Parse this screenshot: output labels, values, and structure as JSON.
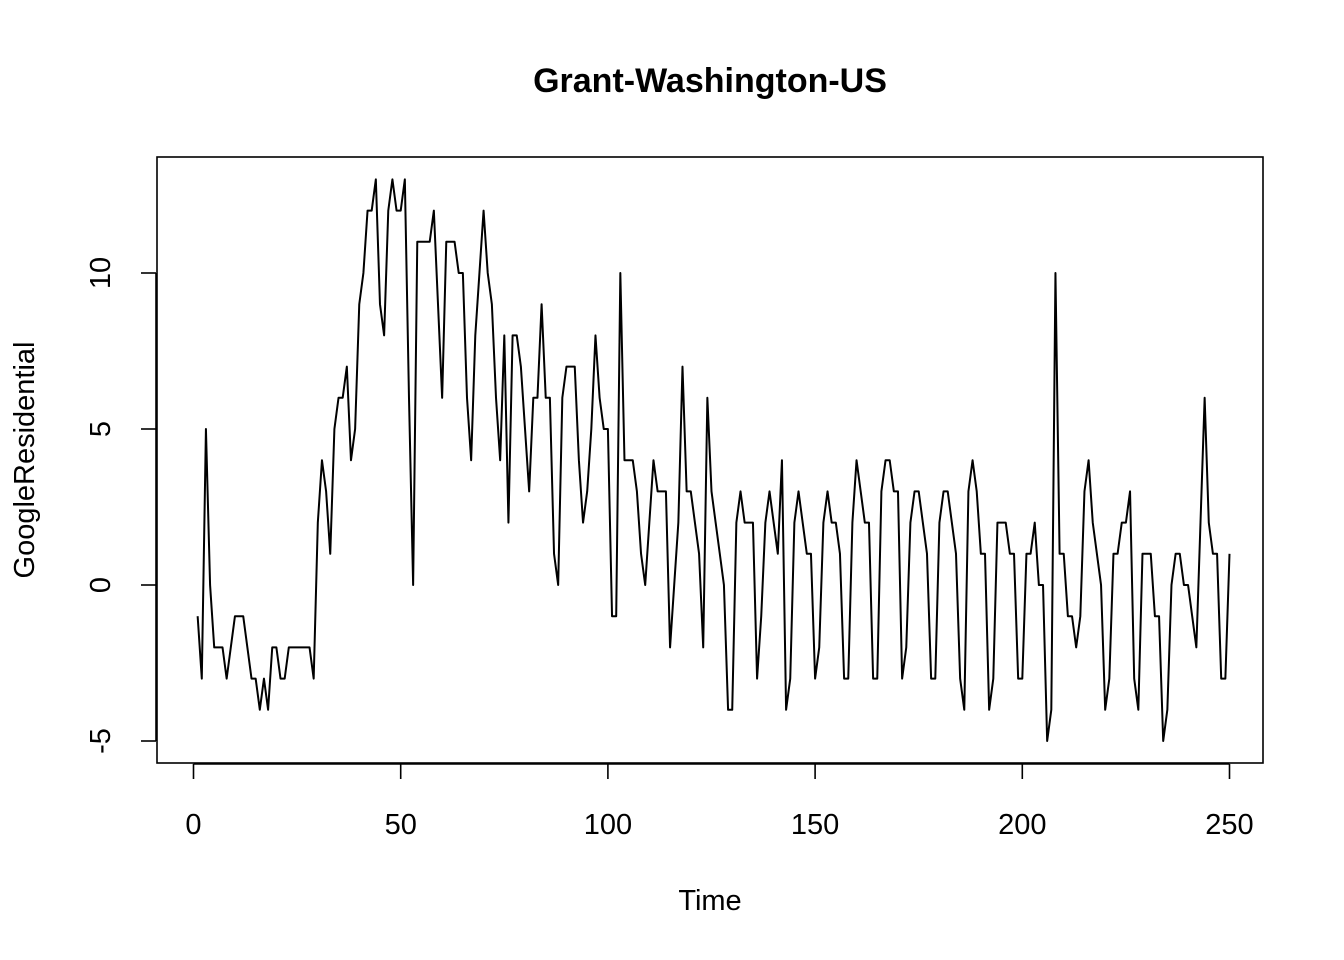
{
  "chart_data": {
    "type": "line",
    "title": "Grant-Washington-US",
    "xlabel": "Time",
    "ylabel": "GoogleResidential",
    "xlim": [
      0,
      250
    ],
    "ylim": [
      -5,
      13
    ],
    "x_ticks": [
      0,
      50,
      100,
      150,
      200,
      250
    ],
    "y_ticks": [
      -5,
      0,
      5,
      10
    ],
    "x_start": 1,
    "grid": false,
    "legend": "none",
    "line_color": "#000000",
    "series": [
      {
        "values": [
          -1,
          -3,
          5,
          0,
          -2,
          -2,
          -2,
          -3,
          -2,
          -1,
          -1,
          -1,
          -2,
          -3,
          -3,
          -4,
          -3,
          -4,
          -2,
          -2,
          -3,
          -3,
          -2,
          -2,
          -2,
          -2,
          -2,
          -2,
          -3,
          2,
          4,
          3,
          1,
          5,
          6,
          6,
          7,
          4,
          5,
          9,
          10,
          12,
          12,
          13,
          9,
          8,
          12,
          13,
          12,
          12,
          13,
          6,
          0,
          11,
          11,
          11,
          11,
          12,
          9,
          6,
          11,
          11,
          11,
          10,
          10,
          6,
          4,
          8,
          10,
          12,
          10,
          9,
          6,
          4,
          8,
          2,
          8,
          8,
          7,
          5,
          3,
          6,
          6,
          9,
          6,
          6,
          1,
          0,
          6,
          7,
          7,
          7,
          4,
          2,
          3,
          5,
          8,
          6,
          5,
          5,
          -1,
          -1,
          10,
          4,
          4,
          4,
          3,
          1,
          0,
          2,
          4,
          3,
          3,
          3,
          -2,
          0,
          2,
          7,
          3,
          3,
          2,
          1,
          -2,
          6,
          3,
          2,
          1,
          0,
          -4,
          -4,
          2,
          3,
          2,
          2,
          2,
          -3,
          -1,
          2,
          3,
          2,
          1,
          4,
          -4,
          -3,
          2,
          3,
          2,
          1,
          1,
          -3,
          -2,
          2,
          3,
          2,
          2,
          1,
          -3,
          -3,
          2,
          4,
          3,
          2,
          2,
          -3,
          -3,
          3,
          4,
          4,
          3,
          3,
          -3,
          -2,
          2,
          3,
          3,
          2,
          1,
          -3,
          -3,
          2,
          3,
          3,
          2,
          1,
          -3,
          -4,
          3,
          4,
          3,
          1,
          1,
          -4,
          -3,
          2,
          2,
          2,
          1,
          1,
          -3,
          -3,
          1,
          1,
          2,
          0,
          0,
          -5,
          -4,
          10,
          1,
          1,
          -1,
          -1,
          -2,
          -1,
          3,
          4,
          2,
          1,
          0,
          -4,
          -3,
          1,
          1,
          2,
          2,
          3,
          -3,
          -4,
          1,
          1,
          1,
          -1,
          -1,
          -5,
          -4,
          0,
          1,
          1,
          0,
          0,
          -1,
          -2,
          2,
          6,
          2,
          1,
          1,
          -3,
          -3,
          1
        ]
      }
    ]
  }
}
